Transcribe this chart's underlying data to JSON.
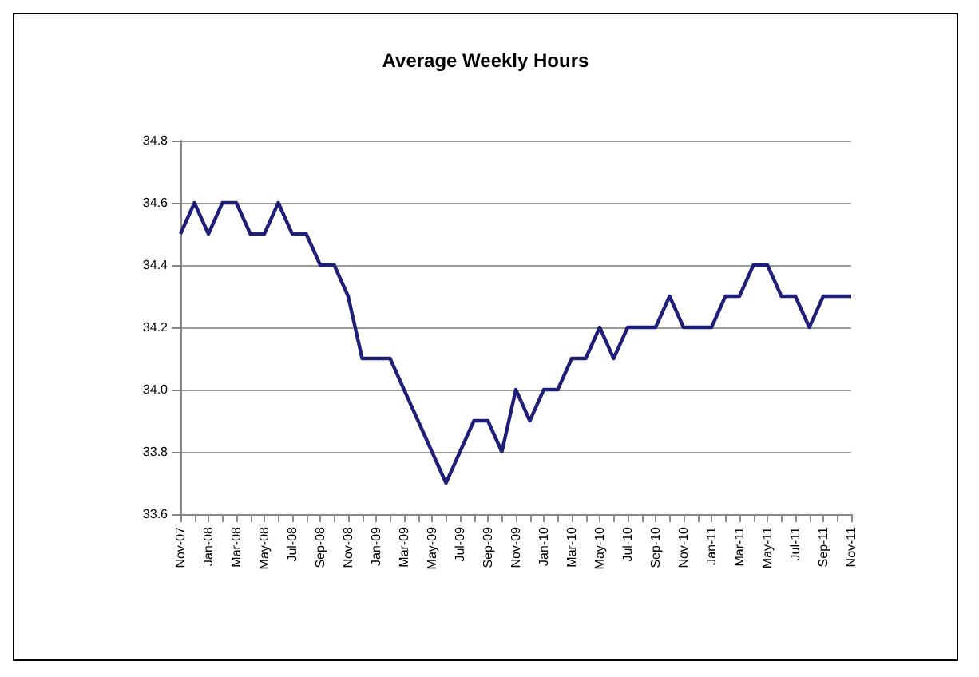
{
  "chart_data": {
    "type": "line",
    "title": "Average Weekly Hours",
    "categories": [
      "Nov-07",
      null,
      "Jan-08",
      null,
      "Mar-08",
      null,
      "May-08",
      null,
      "Jul-08",
      null,
      "Sep-08",
      null,
      "Nov-08",
      null,
      "Jan-09",
      null,
      "Mar-09",
      null,
      "May-09",
      null,
      "Jul-09",
      null,
      "Sep-09",
      null,
      "Nov-09",
      null,
      "Jan-10",
      null,
      "Mar-10",
      null,
      "May-10",
      null,
      "Jul-10",
      null,
      "Sep-10",
      null,
      "Nov-10",
      null,
      "Jan-11",
      null,
      "Mar-11",
      null,
      "May-11",
      null,
      "Jul-11",
      null,
      "Sep-11",
      null,
      "Nov-11"
    ],
    "series": [
      {
        "color": "#1f1f7a",
        "values": [
          34.5,
          34.6,
          34.5,
          34.6,
          34.6,
          34.5,
          34.5,
          34.6,
          34.5,
          34.5,
          34.4,
          34.4,
          34.3,
          34.1,
          34.1,
          34.1,
          34.0,
          33.9,
          33.8,
          33.7,
          33.8,
          33.9,
          33.9,
          33.8,
          34.0,
          33.9,
          34.0,
          34.0,
          34.1,
          34.1,
          34.2,
          34.1,
          34.2,
          34.2,
          34.2,
          34.3,
          34.2,
          34.2,
          34.2,
          34.3,
          34.3,
          34.4,
          34.4,
          34.3,
          34.3,
          34.2,
          34.3,
          34.3,
          34.3
        ]
      }
    ],
    "ylim": [
      33.6,
      34.8
    ],
    "yticks": [
      {
        "value": 33.6,
        "label": "33.6"
      },
      {
        "value": 33.8,
        "label": "33.8"
      },
      {
        "value": 34.0,
        "label": "34.0"
      },
      {
        "value": 34.2,
        "label": "34.2"
      },
      {
        "value": 34.4,
        "label": "34.4"
      },
      {
        "value": 34.6,
        "label": "34.6"
      },
      {
        "value": 34.8,
        "label": "34.8"
      }
    ],
    "grid": "y",
    "marker": "none",
    "line_style": "solid"
  }
}
